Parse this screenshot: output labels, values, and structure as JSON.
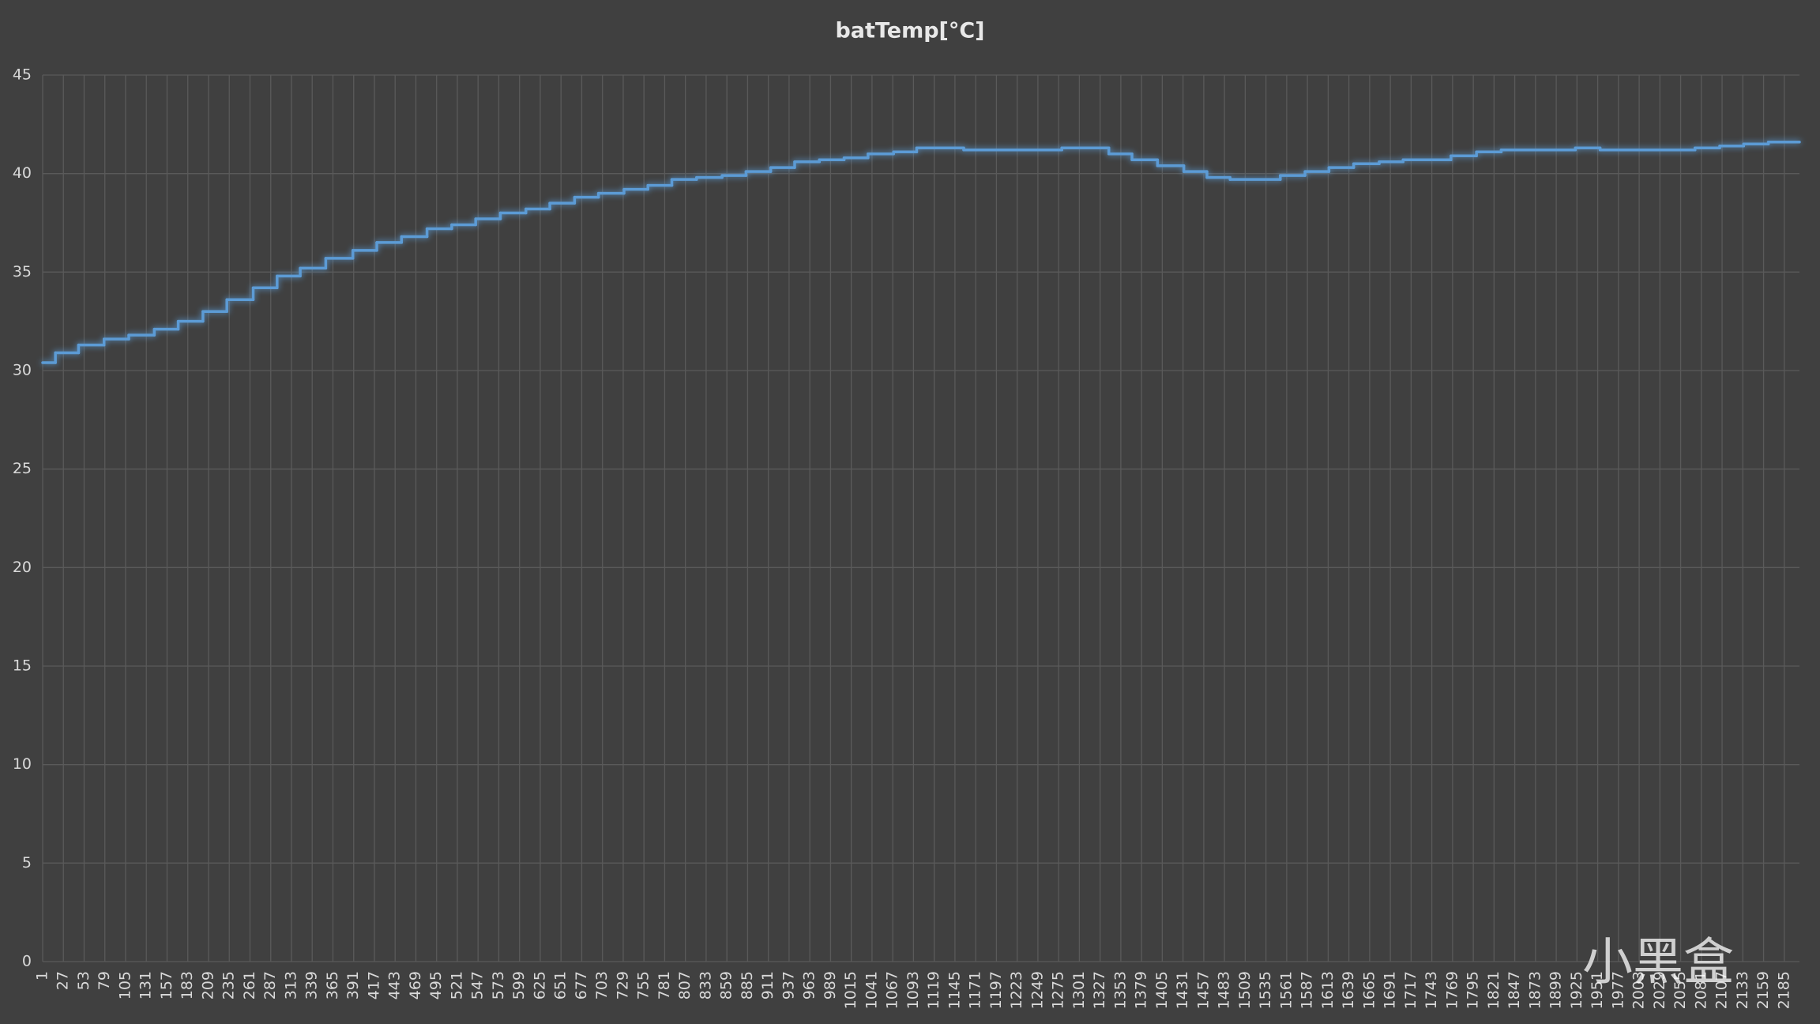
{
  "chart_data": {
    "type": "line",
    "step": "post",
    "title": "batTemp[°C]",
    "x": [
      1,
      17,
      46,
      78,
      109,
      141,
      171,
      202,
      232,
      265,
      295,
      324,
      356,
      390,
      420,
      451,
      483,
      514,
      544,
      575,
      607,
      637,
      668,
      698,
      730,
      760,
      790,
      821,
      853,
      883,
      914,
      944,
      975,
      1006,
      1036,
      1068,
      1097,
      1156,
      1279,
      1338,
      1367,
      1399,
      1432,
      1461,
      1490,
      1553,
      1584,
      1614,
      1645,
      1677,
      1707,
      1767,
      1799,
      1830,
      1923,
      1954,
      2073,
      2104,
      2134,
      2165
    ],
    "series": [
      {
        "name": "batTemp[°C]",
        "color": "#5b9bd5",
        "values": [
          30.4,
          30.9,
          31.3,
          31.6,
          31.8,
          32.1,
          32.5,
          33.0,
          33.6,
          34.2,
          34.8,
          35.2,
          35.7,
          36.1,
          36.5,
          36.8,
          37.2,
          37.4,
          37.7,
          38.0,
          38.2,
          38.5,
          38.8,
          39.0,
          39.2,
          39.4,
          39.7,
          39.8,
          39.9,
          40.1,
          40.3,
          40.6,
          40.7,
          40.8,
          41.0,
          41.1,
          41.3,
          41.2,
          41.3,
          41.0,
          40.7,
          40.4,
          40.1,
          39.8,
          39.7,
          39.9,
          40.1,
          40.3,
          40.5,
          40.6,
          40.7,
          40.9,
          41.1,
          41.2,
          41.3,
          41.2,
          41.3,
          41.4,
          41.5,
          41.6
        ]
      }
    ],
    "xlim": [
      1,
      2204
    ],
    "xticks": [
      1,
      27,
      53,
      79,
      105,
      131,
      157,
      183,
      209,
      235,
      261,
      287,
      313,
      339,
      365,
      391,
      417,
      443,
      469,
      495,
      521,
      547,
      573,
      599,
      625,
      651,
      677,
      703,
      729,
      755,
      781,
      807,
      833,
      859,
      885,
      911,
      937,
      963,
      989,
      1015,
      1041,
      1067,
      1093,
      1119,
      1145,
      1171,
      1197,
      1223,
      1249,
      1275,
      1301,
      1327,
      1353,
      1379,
      1405,
      1431,
      1457,
      1483,
      1509,
      1535,
      1561,
      1587,
      1613,
      1639,
      1665,
      1691,
      1717,
      1743,
      1769,
      1795,
      1821,
      1847,
      1873,
      1899,
      1925,
      1951,
      1977,
      2003,
      2029,
      2055,
      2081,
      2107,
      2133,
      2159,
      2185
    ],
    "ylim": [
      0,
      45
    ],
    "yticks": [
      0,
      5,
      10,
      15,
      20,
      25,
      30,
      35,
      40,
      45
    ],
    "grid": true,
    "watermark": "小黑盒"
  }
}
